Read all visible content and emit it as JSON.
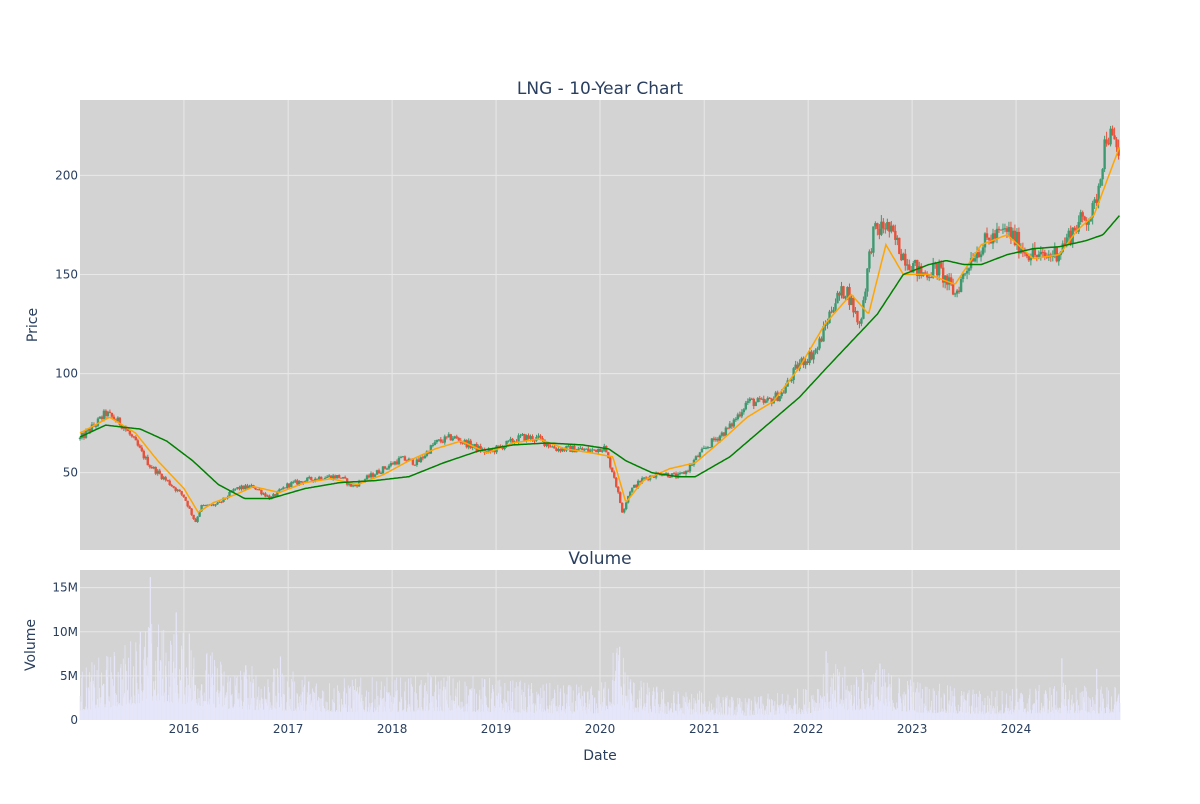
{
  "colors": {
    "plot_bg": "#d3d3d3",
    "grid": "#e8e8e8",
    "candle_up": "#3d9970",
    "candle_down": "#e8503a",
    "ma_short": "#ffa500",
    "ma_long": "#008000",
    "volume_bar": "#e6e6fa",
    "text": "#2a3f5f"
  },
  "chart_data": [
    {
      "id": "price",
      "type": "candlestick",
      "title": "LNG - 10-Year Chart",
      "ylabel": "Price",
      "xlabel": "",
      "x_range": [
        "2015-01-01",
        "2024-12-31"
      ],
      "ylim": [
        11,
        238
      ],
      "y_ticks": [
        50,
        100,
        150,
        200
      ],
      "x_ticks": [
        "2016",
        "2017",
        "2018",
        "2019",
        "2020",
        "2021",
        "2022",
        "2023",
        "2024"
      ],
      "grid": true,
      "series": [
        {
          "kind": "price_close",
          "x": [
            "2015-01-01",
            "2015-03-01",
            "2015-04-01",
            "2015-06-01",
            "2015-07-15",
            "2015-09-01",
            "2015-11-01",
            "2016-01-01",
            "2016-02-10",
            "2016-03-01",
            "2016-05-01",
            "2016-07-01",
            "2016-09-01",
            "2016-11-01",
            "2017-01-01",
            "2017-03-01",
            "2017-05-01",
            "2017-07-01",
            "2017-08-15",
            "2017-10-01",
            "2017-12-01",
            "2018-02-01",
            "2018-04-01",
            "2018-06-01",
            "2018-08-01",
            "2018-10-01",
            "2018-12-01",
            "2019-02-01",
            "2019-04-01",
            "2019-06-01",
            "2019-08-01",
            "2019-10-01",
            "2019-12-01",
            "2020-01-15",
            "2020-02-20",
            "2020-03-20",
            "2020-04-15",
            "2020-06-01",
            "2020-08-01",
            "2020-10-01",
            "2020-11-01",
            "2020-12-01",
            "2021-02-01",
            "2021-04-01",
            "2021-06-01",
            "2021-08-01",
            "2021-10-01",
            "2021-12-01",
            "2022-02-01",
            "2022-04-01",
            "2022-05-15",
            "2022-07-01",
            "2022-08-15",
            "2022-10-01",
            "2022-12-01",
            "2023-02-01",
            "2023-04-01",
            "2023-06-01",
            "2023-08-01",
            "2023-10-01",
            "2023-12-01",
            "2024-02-01",
            "2024-04-01",
            "2024-06-01",
            "2024-08-01",
            "2024-10-01",
            "2024-11-15",
            "2024-12-31"
          ],
          "y": [
            67,
            75,
            80,
            74,
            65,
            54,
            46,
            38,
            25,
            33,
            34,
            42,
            43,
            37,
            44,
            46,
            48,
            48,
            43,
            47,
            52,
            57,
            55,
            65,
            68,
            64,
            60,
            64,
            68,
            67,
            62,
            62,
            61,
            63,
            48,
            30,
            41,
            47,
            50,
            48,
            51,
            57,
            66,
            73,
            86,
            85,
            90,
            105,
            112,
            136,
            143,
            124,
            170,
            175,
            160,
            150,
            153,
            140,
            160,
            168,
            172,
            162,
            158,
            162,
            175,
            182,
            222,
            210
          ]
        },
        {
          "kind": "moving_average_short",
          "x": [
            "2015-01-01",
            "2015-04-15",
            "2015-07-15",
            "2015-10-01",
            "2016-01-01",
            "2016-02-20",
            "2016-04-15",
            "2016-07-01",
            "2016-09-01",
            "2016-12-01",
            "2017-03-01",
            "2017-06-01",
            "2017-09-01",
            "2017-12-01",
            "2018-03-01",
            "2018-06-01",
            "2018-09-01",
            "2018-12-01",
            "2019-03-01",
            "2019-06-01",
            "2019-09-01",
            "2019-12-01",
            "2020-02-15",
            "2020-04-01",
            "2020-06-01",
            "2020-09-01",
            "2020-12-01",
            "2021-03-01",
            "2021-06-01",
            "2021-09-01",
            "2021-12-01",
            "2022-03-01",
            "2022-06-01",
            "2022-08-01",
            "2022-10-01",
            "2022-12-01",
            "2023-03-01",
            "2023-06-01",
            "2023-09-01",
            "2023-12-01",
            "2024-03-01",
            "2024-06-01",
            "2024-08-01",
            "2024-10-01",
            "2024-12-31"
          ],
          "y": [
            70,
            78,
            70,
            56,
            42,
            30,
            35,
            39,
            43,
            40,
            45,
            47,
            44,
            49,
            56,
            62,
            66,
            60,
            65,
            67,
            62,
            60,
            58,
            35,
            46,
            52,
            55,
            66,
            78,
            86,
            103,
            125,
            140,
            130,
            165,
            150,
            150,
            145,
            165,
            170,
            158,
            160,
            172,
            180,
            215
          ]
        },
        {
          "kind": "moving_average_long",
          "x": [
            "2015-01-01",
            "2015-04-01",
            "2015-08-01",
            "2015-11-01",
            "2016-02-01",
            "2016-05-01",
            "2016-08-01",
            "2016-11-01",
            "2017-03-01",
            "2017-07-01",
            "2017-11-01",
            "2018-03-01",
            "2018-07-01",
            "2018-11-01",
            "2019-03-01",
            "2019-07-01",
            "2019-11-01",
            "2020-02-01",
            "2020-04-01",
            "2020-07-01",
            "2020-10-01",
            "2020-12-01",
            "2021-04-01",
            "2021-08-01",
            "2021-12-01",
            "2022-03-01",
            "2022-06-01",
            "2022-09-01",
            "2022-12-01",
            "2023-03-01",
            "2023-05-01",
            "2023-07-01",
            "2023-09-01",
            "2023-12-01",
            "2024-03-01",
            "2024-06-01",
            "2024-09-01",
            "2024-11-01",
            "2024-12-31"
          ],
          "y": [
            68,
            74,
            72,
            66,
            56,
            44,
            37,
            37,
            42,
            45,
            46,
            48,
            55,
            61,
            64,
            65,
            64,
            62,
            56,
            50,
            48,
            48,
            58,
            73,
            88,
            102,
            116,
            130,
            150,
            155,
            157,
            155,
            155,
            160,
            163,
            164,
            167,
            170,
            180
          ]
        }
      ]
    },
    {
      "id": "volume",
      "type": "bar",
      "title": "Volume",
      "ylabel": "Volume",
      "xlabel": "Date",
      "x_range": [
        "2015-01-01",
        "2024-12-31"
      ],
      "ylim": [
        0,
        17000000
      ],
      "y_tick_values": [
        0,
        5000000,
        10000000,
        15000000
      ],
      "y_tick_labels": [
        "0",
        "5M",
        "10M",
        "15M"
      ],
      "x_ticks": [
        "2016",
        "2017",
        "2018",
        "2019",
        "2020",
        "2021",
        "2022",
        "2023",
        "2024"
      ],
      "grid": true,
      "volume_profile": {
        "x": [
          "2015-01-01",
          "2015-06-01",
          "2015-09-01",
          "2015-12-01",
          "2016-03-01",
          "2016-06-01",
          "2016-12-01",
          "2017-06-01",
          "2018-01-01",
          "2018-06-01",
          "2019-01-01",
          "2019-06-01",
          "2020-01-01",
          "2020-03-01",
          "2020-05-01",
          "2020-09-01",
          "2021-01-01",
          "2021-06-01",
          "2022-01-01",
          "2022-03-01",
          "2022-06-01",
          "2022-09-01",
          "2023-03-01",
          "2023-09-01",
          "2024-03-01",
          "2024-06-01",
          "2024-12-31"
        ],
        "avg": [
          3000000,
          4500000,
          6000000,
          5500000,
          4500000,
          3500000,
          3000000,
          2500000,
          2500000,
          2800000,
          2500000,
          2200000,
          2000000,
          5000000,
          2500000,
          1800000,
          1700000,
          1300000,
          2000000,
          3500000,
          3000000,
          3200000,
          2200000,
          1800000,
          2000000,
          2200000,
          2000000
        ]
      },
      "spikes": [
        {
          "x": "2015-09-05",
          "y": 16200000
        },
        {
          "x": "2015-12-05",
          "y": 12200000
        },
        {
          "x": "2015-08-01",
          "y": 10000000
        },
        {
          "x": "2016-01-20",
          "y": 9800000
        },
        {
          "x": "2020-03-10",
          "y": 8300000
        },
        {
          "x": "2022-03-05",
          "y": 7800000
        },
        {
          "x": "2016-12-05",
          "y": 7200000
        },
        {
          "x": "2024-06-10",
          "y": 7000000
        },
        {
          "x": "2022-09-10",
          "y": 6400000
        },
        {
          "x": "2016-08-05",
          "y": 6200000
        },
        {
          "x": "2024-10-10",
          "y": 5800000
        }
      ]
    }
  ]
}
